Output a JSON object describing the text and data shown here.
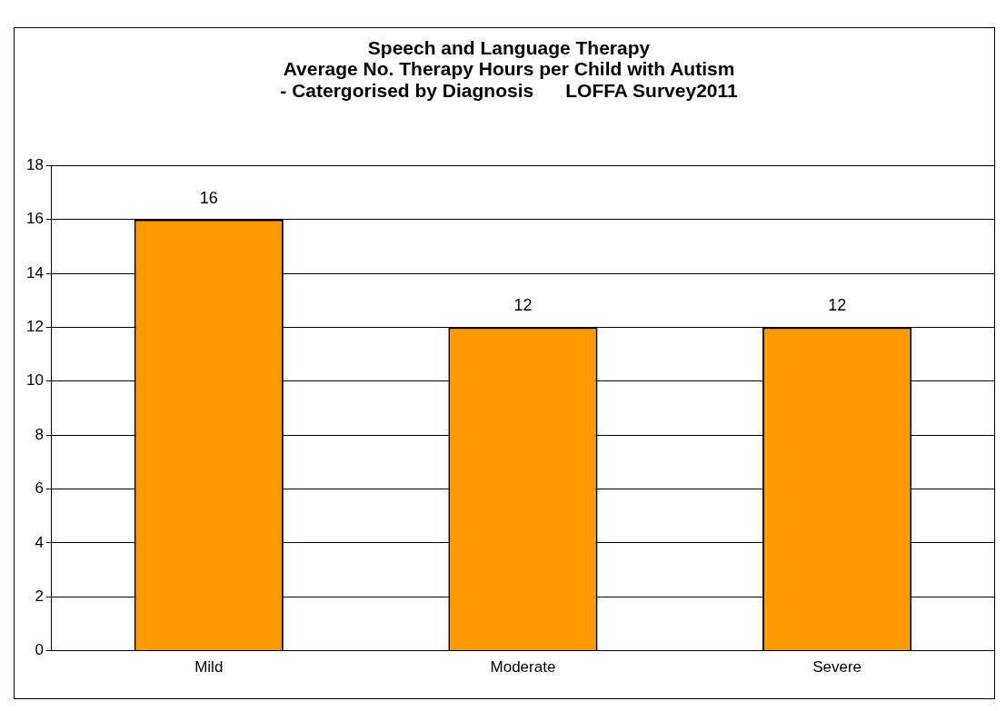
{
  "chart_data": {
    "type": "bar",
    "title": "Speech and Language Therapy\nAverage No. Therapy Hours per Child with Autism\n- Catergorised by Diagnosis      LOFFA Survey2011",
    "categories": [
      "Mild",
      "Moderate",
      "Severe"
    ],
    "values": [
      16,
      12,
      12
    ],
    "color": "#ff9900",
    "ylim": [
      0,
      18
    ],
    "yticks": [
      0,
      2,
      4,
      6,
      8,
      10,
      12,
      14,
      16,
      18
    ],
    "grid": "y",
    "data_labels": true
  }
}
